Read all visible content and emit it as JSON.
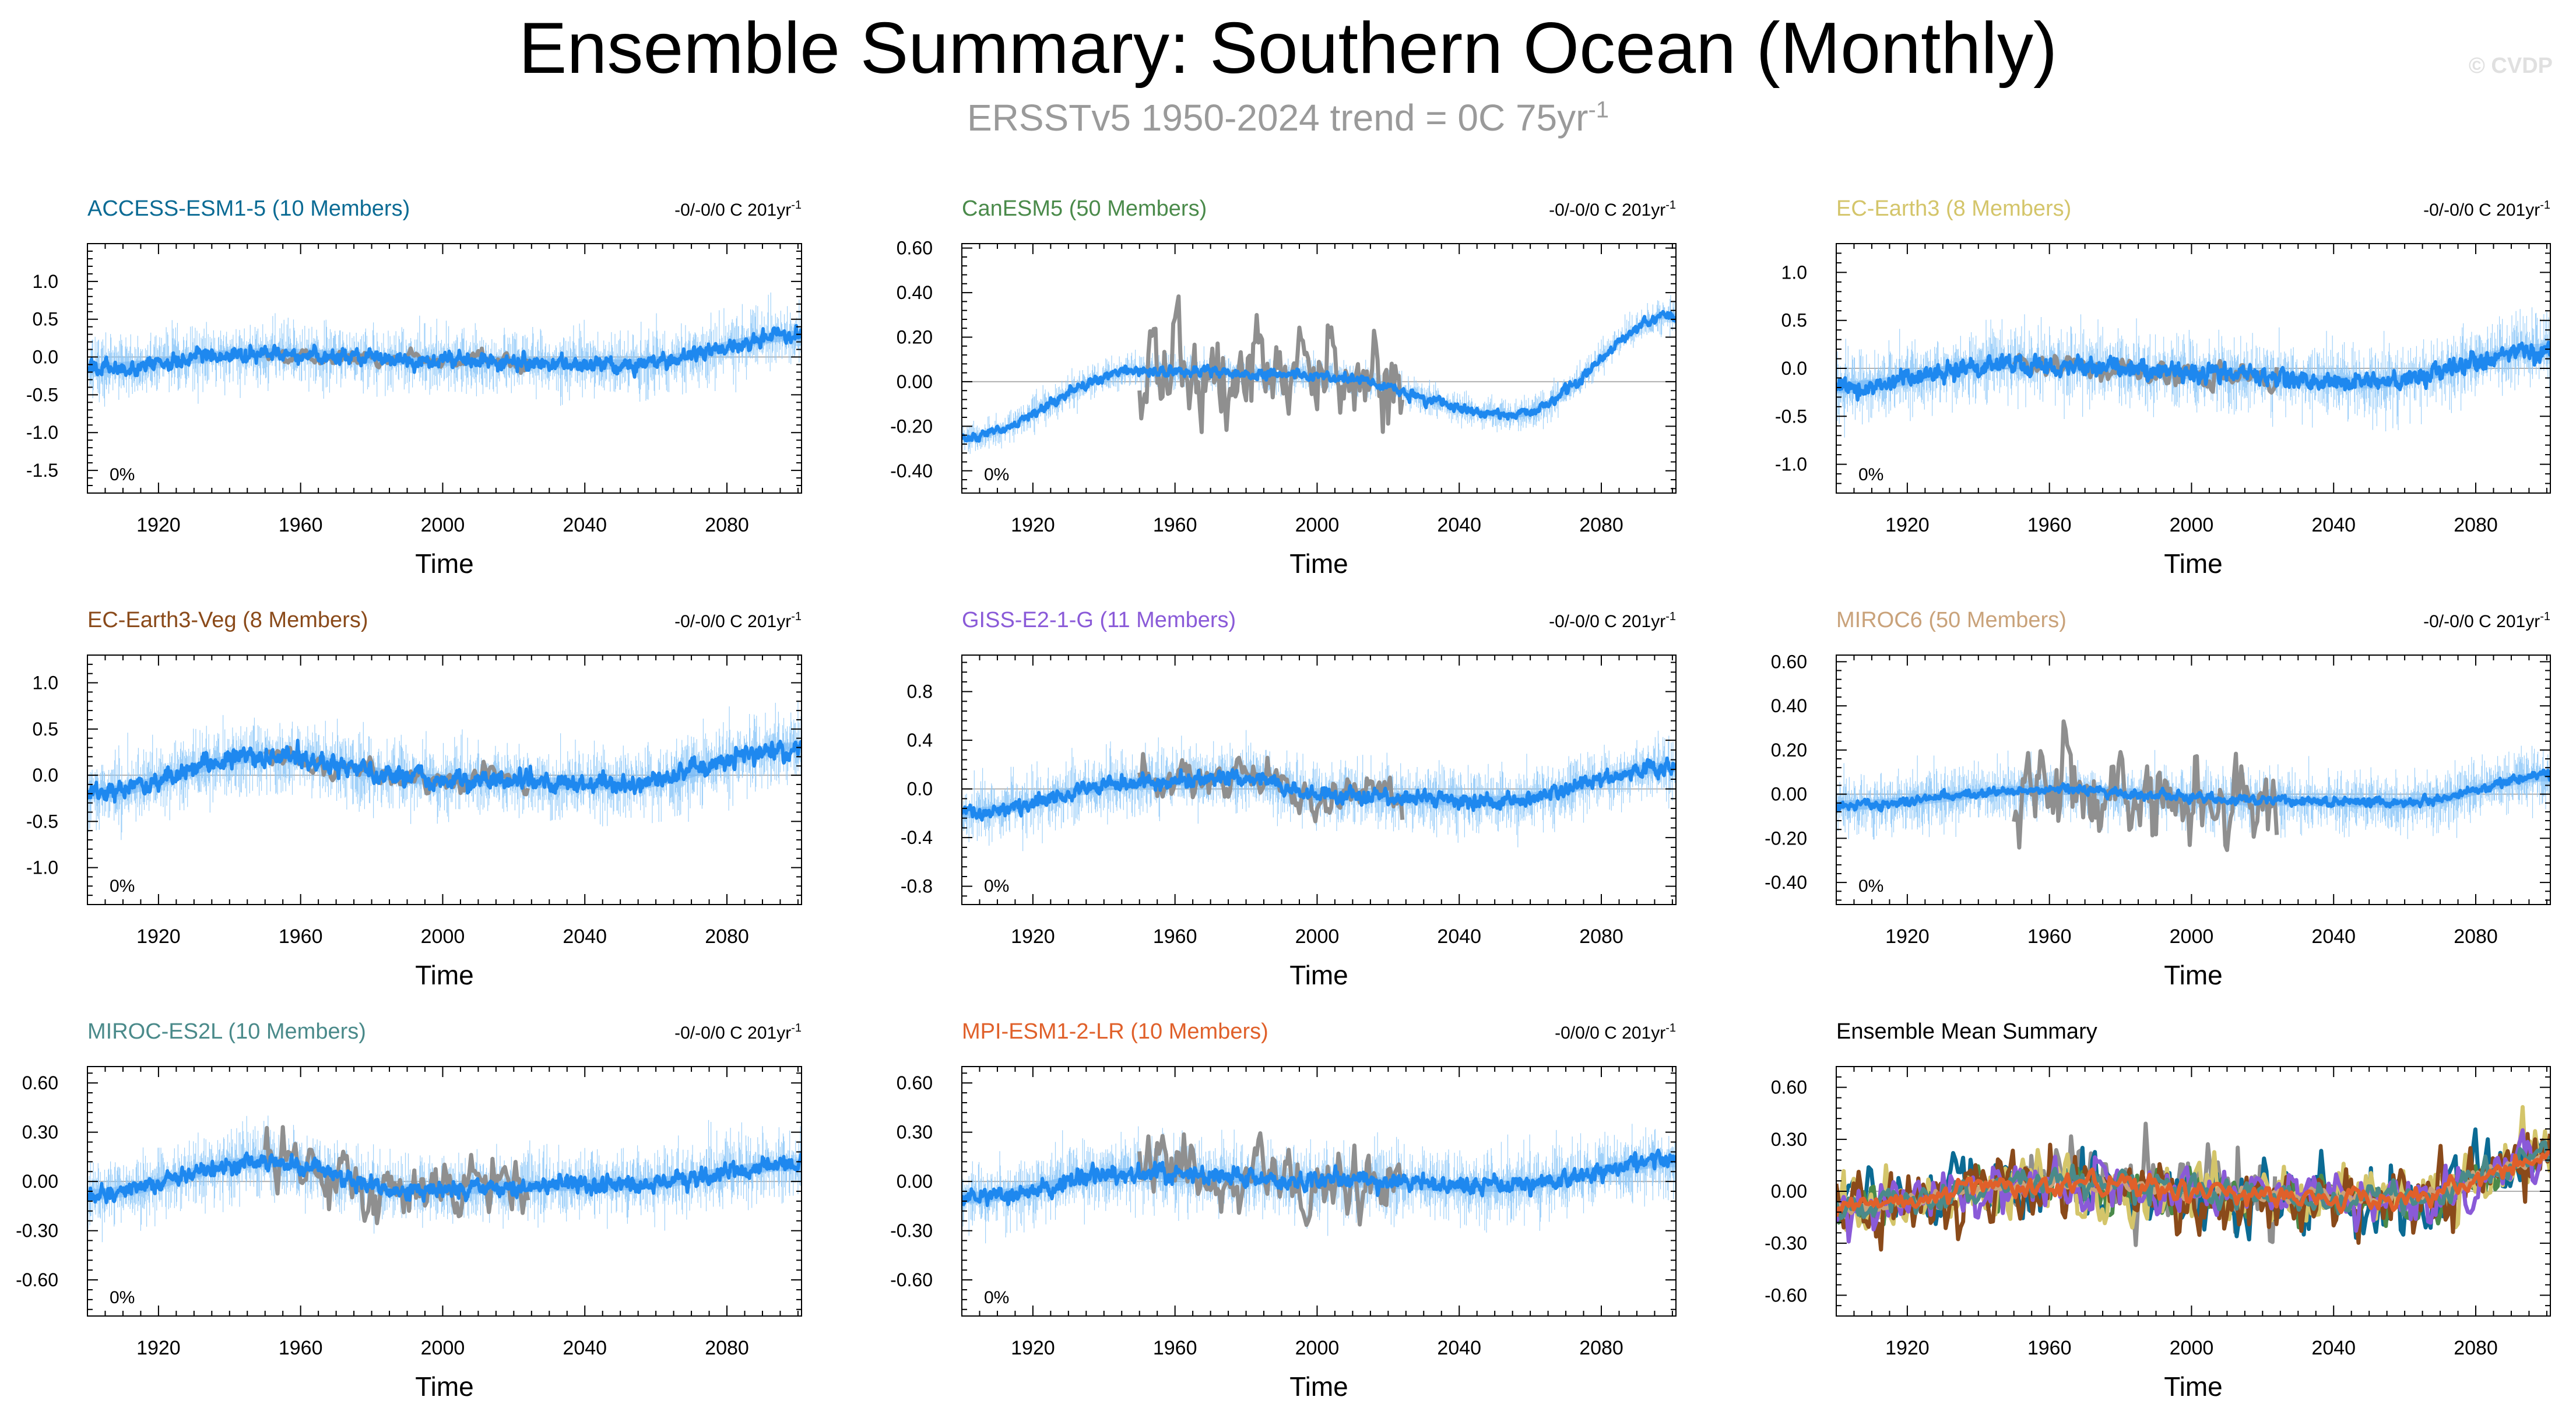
{
  "title": "Ensemble Summary: Southern Ocean (Monthly)",
  "subtitle": {
    "text": "ERSSTv5 1950-2024 trend = 0C 75yr",
    "sup": "-1"
  },
  "copyright": "© CVDP",
  "colors": {
    "ensemble": "#1e88ef",
    "spread": "#8ec8f8",
    "obs": "#8f8f8f",
    "axis": "#000000"
  },
  "chart_data": [
    {
      "type": "line",
      "title": "ACCESS-ESM1-5 (10 Members)",
      "title_color": "#0b6b94",
      "trend_label": "-0/-0/0 C 201yr",
      "trend_sup": "-1",
      "percent_label": "0%",
      "xlabel": "Time",
      "xlim": [
        1900,
        2101
      ],
      "xticks": [
        "1920",
        "1960",
        "2000",
        "2040",
        "2080"
      ],
      "ylim": [
        -1.8,
        1.5
      ],
      "yticks": [
        -1.5,
        -1.0,
        -0.5,
        0.0,
        0.5,
        1.0
      ],
      "ytick_labels": [
        "-1.5",
        "-1.0",
        "-0.5",
        "0.0",
        "0.5",
        "1.0"
      ],
      "amp": 0.1,
      "trend_shape": [
        [
          1900,
          -0.15
        ],
        [
          1950,
          0.05
        ],
        [
          2000,
          -0.05
        ],
        [
          2050,
          -0.1
        ],
        [
          2101,
          0.28
        ]
      ],
      "spread": 0.55,
      "obs_amp": 0.1,
      "obs_range": [
        1950,
        2024
      ],
      "ensemble": "ACCESS-ESM1-5",
      "series": [
        {
          "name": "Ensemble mean"
        },
        {
          "name": "ERSSTv5"
        }
      ]
    },
    {
      "type": "line",
      "title": "CanESM5 (50 Members)",
      "title_color": "#4a8a4a",
      "trend_label": "-0/-0/0 C 201yr",
      "trend_sup": "-1",
      "percent_label": "0%",
      "xlabel": "Time",
      "xlim": [
        1900,
        2101
      ],
      "xticks": [
        "1920",
        "1960",
        "2000",
        "2040",
        "2080"
      ],
      "ylim": [
        -0.5,
        0.62
      ],
      "yticks": [
        -0.4,
        -0.2,
        0.0,
        0.2,
        0.4,
        0.6
      ],
      "ytick_labels": [
        "-0.40",
        "-0.20",
        "0.00",
        "0.20",
        "0.40",
        "0.60"
      ],
      "amp": 0.02,
      "trend_shape": [
        [
          1900,
          -0.25
        ],
        [
          1950,
          0.05
        ],
        [
          2000,
          0.03
        ],
        [
          2055,
          -0.15
        ],
        [
          2101,
          0.3
        ]
      ],
      "spread": 0.1,
      "obs_amp": 0.2,
      "obs_range": [
        1950,
        2024
      ],
      "ensemble": "CanESM5",
      "series": [
        {
          "name": "Ensemble mean"
        },
        {
          "name": "ERSSTv5"
        }
      ]
    },
    {
      "type": "line",
      "title": "EC-Earth3 (8 Members)",
      "title_color": "#d4c56a",
      "trend_label": "-0/-0/0 C 201yr",
      "trend_sup": "-1",
      "percent_label": "0%",
      "xlabel": "Time",
      "xlim": [
        1900,
        2101
      ],
      "xticks": [
        "1920",
        "1960",
        "2000",
        "2040",
        "2080"
      ],
      "ylim": [
        -1.3,
        1.3
      ],
      "yticks": [
        -1.0,
        -0.5,
        0.0,
        0.5,
        1.0
      ],
      "ytick_labels": [
        "-1.0",
        "-0.5",
        "0.0",
        "0.5",
        "1.0"
      ],
      "amp": 0.1,
      "trend_shape": [
        [
          1900,
          -0.2
        ],
        [
          1950,
          0.05
        ],
        [
          2000,
          -0.05
        ],
        [
          2050,
          -0.15
        ],
        [
          2101,
          0.2
        ]
      ],
      "spread": 0.5,
      "obs_amp": 0.12,
      "obs_range": [
        1950,
        2024
      ],
      "ensemble": "EC-Earth3",
      "series": [
        {
          "name": "Ensemble mean"
        },
        {
          "name": "ERSSTv5"
        }
      ]
    },
    {
      "type": "line",
      "title": "EC-Earth3-Veg (8 Members)",
      "title_color": "#8a4a1a",
      "trend_label": "-0/-0/0 C 201yr",
      "trend_sup": "-1",
      "percent_label": "0%",
      "xlabel": "Time",
      "xlim": [
        1900,
        2101
      ],
      "xticks": [
        "1920",
        "1960",
        "2000",
        "2040",
        "2080"
      ],
      "ylim": [
        -1.4,
        1.3
      ],
      "yticks": [
        -1.0,
        -0.5,
        0.0,
        0.5,
        1.0
      ],
      "ytick_labels": [
        "-1.0",
        "-0.5",
        "0.0",
        "0.5",
        "1.0"
      ],
      "amp": 0.1,
      "trend_shape": [
        [
          1900,
          -0.2
        ],
        [
          1950,
          0.2
        ],
        [
          2000,
          -0.05
        ],
        [
          2050,
          -0.1
        ],
        [
          2101,
          0.3
        ]
      ],
      "spread": 0.5,
      "obs_amp": 0.12,
      "obs_range": [
        1950,
        2024
      ],
      "ensemble": "EC-Earth3-Veg",
      "series": [
        {
          "name": "Ensemble mean"
        },
        {
          "name": "ERSSTv5"
        }
      ]
    },
    {
      "type": "line",
      "title": "GISS-E2-1-G (11 Members)",
      "title_color": "#8a5ad8",
      "trend_label": "-0/-0/0 C 201yr",
      "trend_sup": "-1",
      "percent_label": "0%",
      "xlabel": "Time",
      "xlim": [
        1900,
        2101
      ],
      "xticks": [
        "1920",
        "1960",
        "2000",
        "2040",
        "2080"
      ],
      "ylim": [
        -0.95,
        1.1
      ],
      "yticks": [
        -0.8,
        -0.4,
        0.0,
        0.4,
        0.8
      ],
      "ytick_labels": [
        "-0.8",
        "-0.4",
        "0.0",
        "0.4",
        "0.8"
      ],
      "amp": 0.06,
      "trend_shape": [
        [
          1900,
          -0.2
        ],
        [
          1950,
          0.05
        ],
        [
          1980,
          0.1
        ],
        [
          2000,
          -0.05
        ],
        [
          2050,
          -0.1
        ],
        [
          2101,
          0.18
        ]
      ],
      "spread": 0.35,
      "obs_amp": 0.15,
      "obs_range": [
        1950,
        2024
      ],
      "ensemble": "GISS-E2-1-G",
      "series": [
        {
          "name": "Ensemble mean"
        },
        {
          "name": "ERSSTv5"
        }
      ]
    },
    {
      "type": "line",
      "title": "MIROC6 (50 Members)",
      "title_color": "#c9a27a",
      "trend_label": "-0/-0/0 C 201yr",
      "trend_sup": "-1",
      "percent_label": "0%",
      "xlabel": "Time",
      "xlim": [
        1900,
        2101
      ],
      "xticks": [
        "1920",
        "1960",
        "2000",
        "2040",
        "2080"
      ],
      "ylim": [
        -0.5,
        0.63
      ],
      "yticks": [
        -0.4,
        -0.2,
        0.0,
        0.2,
        0.4,
        0.6
      ],
      "ytick_labels": [
        "-0.40",
        "-0.20",
        "0.00",
        "0.20",
        "0.40",
        "0.60"
      ],
      "amp": 0.02,
      "trend_shape": [
        [
          1900,
          -0.05
        ],
        [
          1960,
          0.02
        ],
        [
          2020,
          -0.03
        ],
        [
          2060,
          -0.04
        ],
        [
          2101,
          0.08
        ]
      ],
      "spread": 0.18,
      "obs_amp": 0.18,
      "obs_range": [
        1950,
        2024
      ],
      "ensemble": "MIROC6",
      "series": [
        {
          "name": "Ensemble mean"
        },
        {
          "name": "ERSSTv5"
        }
      ]
    },
    {
      "type": "line",
      "title": "MIROC-ES2L (10 Members)",
      "title_color": "#4a8a8a",
      "trend_label": "-0/-0/0 C 201yr",
      "trend_sup": "-1",
      "percent_label": "0%",
      "xlabel": "Time",
      "xlim": [
        1900,
        2101
      ],
      "xticks": [
        "1920",
        "1960",
        "2000",
        "2040",
        "2080"
      ],
      "ylim": [
        -0.82,
        0.7
      ],
      "yticks": [
        -0.6,
        -0.3,
        0.0,
        0.3,
        0.6
      ],
      "ytick_labels": [
        "-0.60",
        "-0.30",
        "0.00",
        "0.30",
        "0.60"
      ],
      "amp": 0.05,
      "trend_shape": [
        [
          1900,
          -0.08
        ],
        [
          1950,
          0.12
        ],
        [
          1990,
          -0.05
        ],
        [
          2050,
          -0.02
        ],
        [
          2101,
          0.1
        ]
      ],
      "spread": 0.28,
      "obs_amp": 0.18,
      "obs_range": [
        1950,
        2024
      ],
      "ensemble": "MIROC-ES2L",
      "series": [
        {
          "name": "Ensemble mean"
        },
        {
          "name": "ERSSTv5"
        }
      ]
    },
    {
      "type": "line",
      "title": "MPI-ESM1-2-LR (10 Members)",
      "title_color": "#e0602a",
      "trend_label": "-0/0/0 C 201yr",
      "trend_sup": "-1",
      "percent_label": "0%",
      "xlabel": "Time",
      "xlim": [
        1900,
        2101
      ],
      "xticks": [
        "1920",
        "1960",
        "2000",
        "2040",
        "2080"
      ],
      "ylim": [
        -0.82,
        0.7
      ],
      "yticks": [
        -0.6,
        -0.3,
        0.0,
        0.3,
        0.6
      ],
      "ytick_labels": [
        "-0.60",
        "-0.30",
        "0.00",
        "0.30",
        "0.60"
      ],
      "amp": 0.05,
      "trend_shape": [
        [
          1900,
          -0.1
        ],
        [
          1950,
          0.05
        ],
        [
          2000,
          0.0
        ],
        [
          2050,
          -0.03
        ],
        [
          2101,
          0.12
        ]
      ],
      "spread": 0.28,
      "obs_amp": 0.18,
      "obs_range": [
        1950,
        2024
      ],
      "ensemble": "MPI-ESM1-2-LR",
      "series": [
        {
          "name": "Ensemble mean"
        },
        {
          "name": "ERSSTv5"
        }
      ]
    },
    {
      "type": "line",
      "title": "Ensemble Mean Summary",
      "title_color": "#000000",
      "xlabel": "Time",
      "xlim": [
        1900,
        2101
      ],
      "xticks": [
        "1920",
        "1960",
        "2000",
        "2040",
        "2080"
      ],
      "ylim": [
        -0.72,
        0.72
      ],
      "yticks": [
        -0.6,
        -0.3,
        0.0,
        0.3,
        0.6
      ],
      "ytick_labels": [
        "-0.60",
        "-0.30",
        "0.00",
        "0.30",
        "0.60"
      ],
      "summary": true,
      "series": [
        {
          "name": "ERSSTv5",
          "color": "#8f8f8f",
          "range": [
            1950,
            2024
          ],
          "amp": 0.25
        },
        {
          "name": "ACCESS-ESM1-5",
          "color": "#0b6b94",
          "amp": 0.2
        },
        {
          "name": "CanESM5",
          "color": "#4a8a4a",
          "amp": 0.12
        },
        {
          "name": "EC-Earth3",
          "color": "#d4c56a",
          "amp": 0.18
        },
        {
          "name": "EC-Earth3-Veg",
          "color": "#8a4a1a",
          "amp": 0.2
        },
        {
          "name": "GISS-E2-1-G",
          "color": "#8a5ad8",
          "amp": 0.15
        },
        {
          "name": "MIROC6",
          "color": "#c9a27a",
          "amp": 0.04
        },
        {
          "name": "MIROC-ES2L",
          "color": "#4a8a8a",
          "amp": 0.08
        },
        {
          "name": "MPI-ESM1-2-LR",
          "color": "#e0602a",
          "amp": 0.06
        }
      ]
    }
  ]
}
